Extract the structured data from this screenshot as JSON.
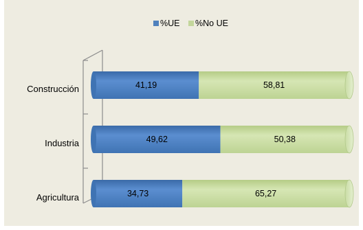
{
  "chart_data": {
    "type": "bar",
    "orientation": "horizontal",
    "stacked": true,
    "percent": true,
    "categories": [
      "Construcción",
      "Industria",
      "Agricultura"
    ],
    "series": [
      {
        "name": "%UE",
        "values": [
          41.19,
          49.62,
          34.73
        ],
        "labels": [
          "41,19",
          "49,62",
          "34,73"
        ],
        "color": "#4f81bd"
      },
      {
        "name": "%No UE",
        "values": [
          58.81,
          50.38,
          65.27
        ],
        "labels": [
          "58,81",
          "50,38",
          "65,27"
        ],
        "color": "#c3d69b"
      }
    ],
    "xlim": [
      0,
      100
    ],
    "legend": "top-center",
    "grid": false,
    "background": "#eeece1"
  }
}
